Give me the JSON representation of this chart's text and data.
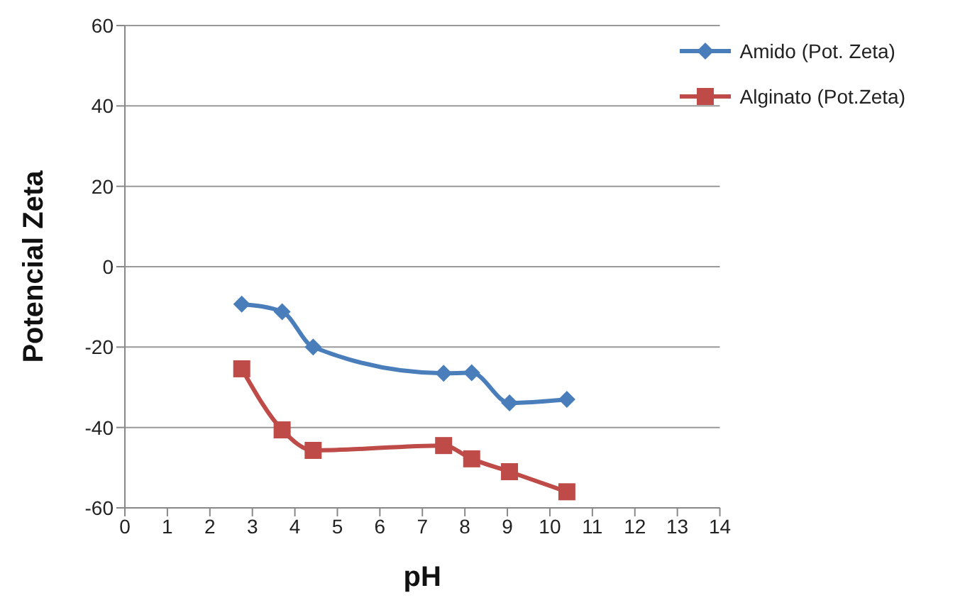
{
  "chart_data": {
    "type": "line",
    "xlabel": "pH",
    "ylabel": "Potencial Zeta",
    "x": [
      2.75,
      3.7,
      4.43,
      7.5,
      8.16,
      9.05,
      10.4
    ],
    "xlim": [
      0,
      14
    ],
    "xticks": [
      0,
      1,
      2,
      3,
      4,
      5,
      6,
      7,
      8,
      9,
      10,
      11,
      12,
      13,
      14
    ],
    "ylim": [
      -60,
      60
    ],
    "yticks": [
      -60,
      -40,
      -20,
      0,
      20,
      40,
      60
    ],
    "grid": "y",
    "legend": "top right",
    "line_style": "solid",
    "series": [
      {
        "name": "Amido (Pot. Zeta)",
        "color": "#4a7ebb",
        "marker": "diamond",
        "values": [
          -9.3,
          -11.2,
          -20,
          -26.5,
          -26.4,
          -33.9,
          -33
        ]
      },
      {
        "name": "Alginato (Pot.Zeta)",
        "color": "#be4b48",
        "marker": "square",
        "values": [
          -25.4,
          -40.6,
          -45.7,
          -44.5,
          -47.8,
          -51,
          -56
        ]
      }
    ]
  }
}
